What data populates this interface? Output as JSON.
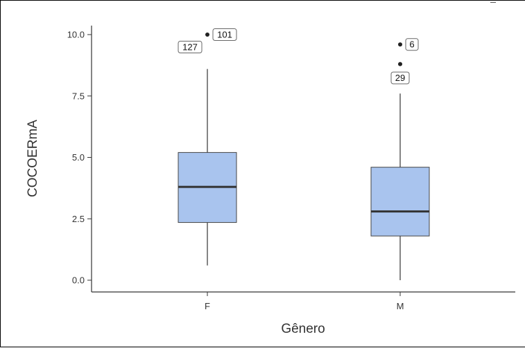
{
  "chart_data": {
    "type": "boxplot",
    "xlabel": "Gênero",
    "ylabel": "COCOERmA",
    "categories": [
      "F",
      "M"
    ],
    "ylim": [
      0,
      10
    ],
    "yticks": [
      0,
      2.5,
      5,
      7.5,
      10
    ],
    "ytick_labels": [
      "0.0",
      "2.5",
      "5.0",
      "7.5",
      "10.0"
    ],
    "grid": false,
    "boxes": [
      {
        "category": "F",
        "whisker_low": 0.6,
        "q1": 2.35,
        "median": 3.8,
        "q3": 5.2,
        "whisker_high": 8.6,
        "outliers": [
          {
            "value": 10.0,
            "labels": [
              "127",
              "101"
            ]
          }
        ]
      },
      {
        "category": "M",
        "whisker_low": 0.0,
        "q1": 1.8,
        "median": 2.8,
        "q3": 4.6,
        "whisker_high": 7.6,
        "outliers": [
          {
            "value": 9.6,
            "labels": [
              "6"
            ]
          },
          {
            "value": 8.8,
            "labels": [
              "29"
            ]
          }
        ]
      }
    ]
  },
  "colors": {
    "box_fill": "#a9c4ee",
    "box_stroke": "#444444",
    "median": "#333333",
    "whisker": "#666666",
    "axis": "#333333",
    "outlier": "#222222"
  }
}
